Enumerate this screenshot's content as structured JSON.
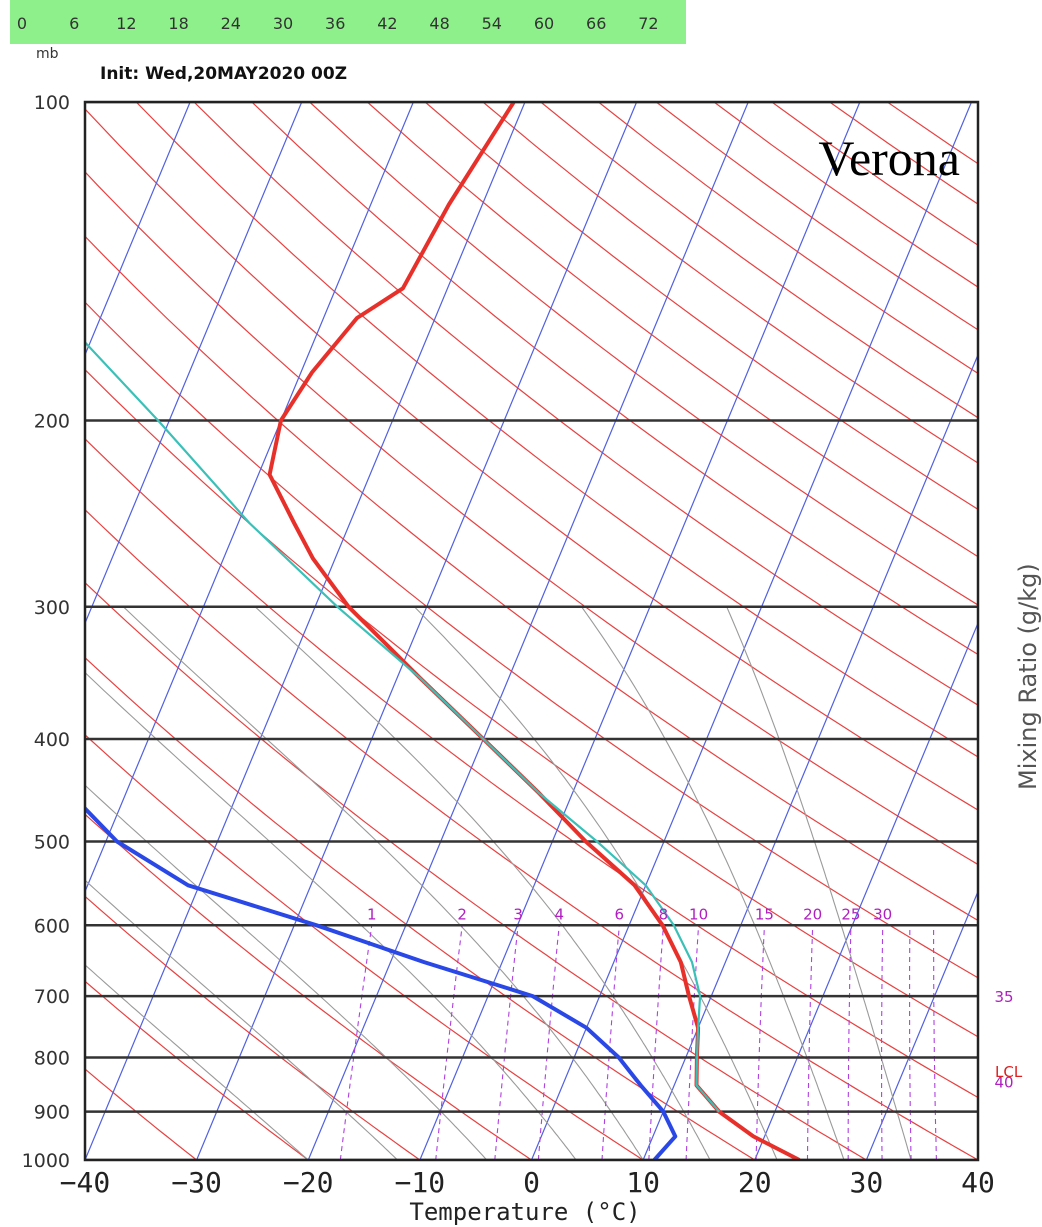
{
  "forecast_hours": [
    "0",
    "6",
    "12",
    "18",
    "24",
    "30",
    "36",
    "42",
    "48",
    "54",
    "60",
    "66",
    "72"
  ],
  "chart_data": {
    "type": "skew-t",
    "station": "Verona",
    "init": "Init: Wed,20MAY2020 00Z",
    "pressure_unit": "mb",
    "xlabel": "Temperature (°C)",
    "right_label": "Mixing Ratio (g/kg)",
    "xlim": [
      -40,
      40
    ],
    "ylim_mb": [
      1000,
      100
    ],
    "x_ticks": [
      "−40",
      "−30",
      "−20",
      "−10",
      "0",
      "10",
      "20",
      "30",
      "40"
    ],
    "pressure_ticks": [
      "100",
      "200",
      "300",
      "400",
      "500",
      "600",
      "700",
      "800",
      "900",
      "1000"
    ],
    "mixing_ratio_labels": [
      "1",
      "2",
      "3",
      "4",
      "6",
      "8",
      "10",
      "15",
      "20",
      "25",
      "30",
      "35",
      "40"
    ],
    "lcl_label": "LCL",
    "series": [
      {
        "name": "temperature",
        "color": "#e8302a",
        "points": [
          [
            1000,
            24
          ],
          [
            950,
            19
          ],
          [
            900,
            15
          ],
          [
            850,
            12
          ],
          [
            800,
            11
          ],
          [
            750,
            10
          ],
          [
            700,
            8
          ],
          [
            650,
            6
          ],
          [
            600,
            3
          ],
          [
            550,
            -1
          ],
          [
            500,
            -7
          ],
          [
            450,
            -13
          ],
          [
            400,
            -20
          ],
          [
            350,
            -28
          ],
          [
            300,
            -37
          ],
          [
            270,
            -42
          ],
          [
            250,
            -45
          ],
          [
            225,
            -49
          ],
          [
            200,
            -50
          ],
          [
            180,
            -49
          ],
          [
            160,
            -47
          ],
          [
            150,
            -44
          ],
          [
            125,
            -43
          ],
          [
            100,
            -41
          ]
        ]
      },
      {
        "name": "dewpoint",
        "color": "#2a48e6",
        "points": [
          [
            1000,
            11
          ],
          [
            950,
            12
          ],
          [
            900,
            10
          ],
          [
            850,
            7
          ],
          [
            800,
            4
          ],
          [
            750,
            0
          ],
          [
            700,
            -6
          ],
          [
            650,
            -17
          ],
          [
            600,
            -28
          ],
          [
            550,
            -41
          ],
          [
            500,
            -49
          ],
          [
            450,
            -55
          ],
          [
            400,
            -61
          ],
          [
            350,
            -68
          ],
          [
            300,
            -74
          ],
          [
            250,
            -77
          ],
          [
            200,
            -79
          ],
          [
            175,
            -80
          ],
          [
            150,
            -82
          ],
          [
            125,
            -85
          ],
          [
            100,
            -88
          ]
        ]
      },
      {
        "name": "parcel",
        "color": "#3bc0b8",
        "points": [
          [
            900,
            15
          ],
          [
            850,
            12
          ],
          [
            800,
            11
          ],
          [
            750,
            10
          ],
          [
            700,
            9
          ],
          [
            650,
            7
          ],
          [
            600,
            4
          ],
          [
            550,
            0
          ],
          [
            500,
            -6
          ],
          [
            450,
            -13
          ],
          [
            400,
            -20
          ],
          [
            350,
            -28
          ],
          [
            300,
            -38
          ],
          [
            250,
            -49
          ],
          [
            200,
            -61
          ],
          [
            150,
            -77
          ],
          [
            100,
            -100
          ]
        ]
      }
    ]
  }
}
